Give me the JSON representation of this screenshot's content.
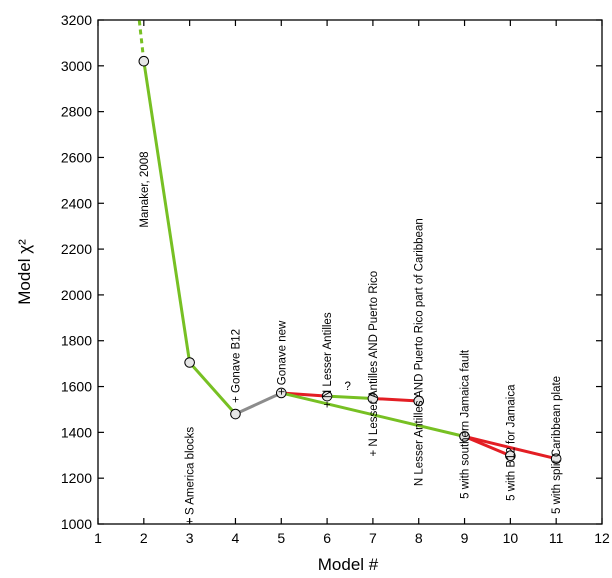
{
  "chart_data": {
    "type": "line",
    "xlabel": "Model #",
    "ylabel": "Model χ²",
    "xlim": [
      1,
      12
    ],
    "ylim": [
      1000,
      3200
    ],
    "xticks": [
      1,
      2,
      3,
      4,
      5,
      6,
      7,
      8,
      9,
      10,
      11,
      12
    ],
    "yticks": [
      1000,
      1200,
      1400,
      1600,
      1800,
      2000,
      2200,
      2400,
      2600,
      2800,
      3000,
      3200
    ],
    "grid": false,
    "points": [
      {
        "x": 2,
        "y": 3020
      },
      {
        "x": 3,
        "y": 1705
      },
      {
        "x": 4,
        "y": 1480
      },
      {
        "x": 5,
        "y": 1572
      },
      {
        "x": 6,
        "y": 1558
      },
      {
        "x": 7,
        "y": 1548
      },
      {
        "x": 8,
        "y": 1537
      },
      {
        "x": 9,
        "y": 1382
      },
      {
        "x": 10,
        "y": 1298
      },
      {
        "x": 11,
        "y": 1285
      }
    ],
    "segments": [
      {
        "from": [
          2,
          3020
        ],
        "to": [
          3,
          1705
        ],
        "color": "#77c023"
      },
      {
        "from": [
          3,
          1705
        ],
        "to": [
          4,
          1480
        ],
        "color": "#77c023"
      },
      {
        "from": [
          4,
          1480
        ],
        "to": [
          5,
          1572
        ],
        "color": "#8c8c8c"
      },
      {
        "from": [
          5,
          1572
        ],
        "to": [
          6,
          1558
        ],
        "color": "#e31e24"
      },
      {
        "from": [
          6,
          1558
        ],
        "to": [
          7,
          1548
        ],
        "color": "#77c023"
      },
      {
        "from": [
          7,
          1548
        ],
        "to": [
          8,
          1537
        ],
        "color": "#e31e24"
      },
      {
        "from": [
          5,
          1572
        ],
        "to": [
          9,
          1382
        ],
        "color": "#77c023"
      },
      {
        "from": [
          9,
          1382
        ],
        "to": [
          10,
          1298
        ],
        "color": "#e31e24"
      },
      {
        "from": [
          9,
          1382
        ],
        "to": [
          11,
          1285
        ],
        "color": "#e31e24"
      }
    ],
    "dashed_segment": {
      "from": [
        2,
        3020
      ],
      "to": [
        1.9,
        3200
      ],
      "color": "#77c023"
    },
    "annotations": [
      {
        "text": "Manaker, 2008",
        "x": 2,
        "y": 2460
      },
      {
        "text": "+ S America blocks",
        "x": 3,
        "y": 1210
      },
      {
        "text": "+ Gonave B12",
        "x": 4,
        "y": 1690
      },
      {
        "text": "+ Gonave new",
        "x": 5,
        "y": 1725
      },
      {
        "text": "+ N Lesser Antilles",
        "x": 6,
        "y": 1715
      },
      {
        "text": "+ N Lesser Antilles AND Puerto Rico",
        "x": 7,
        "y": 1700
      },
      {
        "text": "N Lesser Antilles AND Puerto Rico part of Caribbean",
        "x": 8,
        "y": 1750
      },
      {
        "text": "5 with southern Jamaica fault",
        "x": 9,
        "y": 1435
      },
      {
        "text": "5 with B12 for Jamaica",
        "x": 10,
        "y": 1355
      },
      {
        "text": "5 with split Caribbean plate",
        "x": 11,
        "y": 1345
      }
    ],
    "question_mark": {
      "text": "?",
      "x": 6.45,
      "y": 1585
    }
  }
}
